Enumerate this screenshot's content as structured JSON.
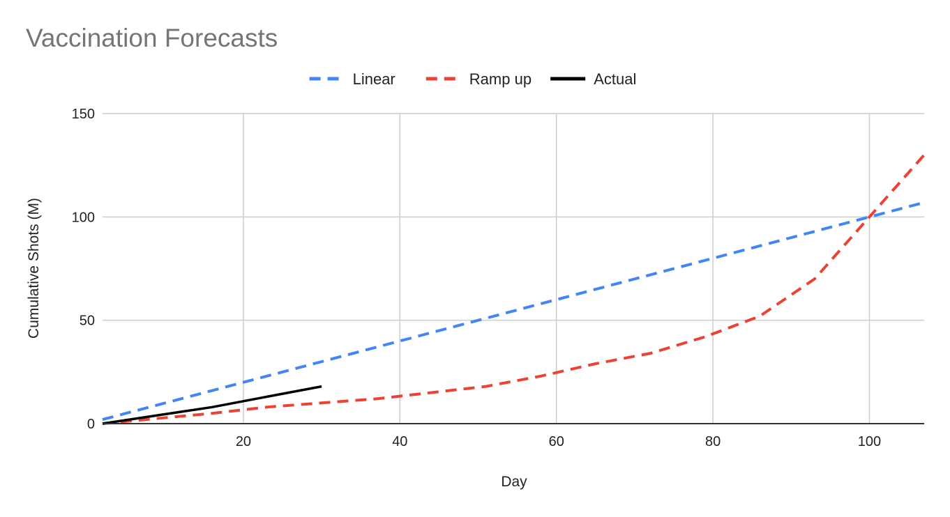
{
  "chart_data": {
    "type": "line",
    "title": "Vaccination Forecasts",
    "xlabel": "Day",
    "ylabel": "Cumulative Shots (M)",
    "xlim": [
      2,
      107
    ],
    "ylim": [
      0,
      150
    ],
    "xticks": [
      20,
      40,
      60,
      80,
      100
    ],
    "yticks": [
      0,
      50,
      100,
      150
    ],
    "grid": true,
    "legend": "top-center",
    "series": [
      {
        "name": "Linear",
        "color": "#4285F4",
        "dashed": true,
        "x": [
          2,
          107
        ],
        "y": [
          2,
          107
        ]
      },
      {
        "name": "Ramp up",
        "color": "#EA4335",
        "dashed": true,
        "x": [
          2,
          16,
          23,
          30,
          37,
          44,
          51,
          58,
          65,
          72,
          79,
          86,
          93,
          100,
          107
        ],
        "y": [
          0,
          5,
          8,
          10,
          12,
          15,
          18,
          23,
          29,
          34,
          42,
          52,
          70,
          100,
          130
        ]
      },
      {
        "name": "Actual",
        "color": "#000000",
        "dashed": false,
        "x": [
          2,
          9,
          16,
          23,
          30
        ],
        "y": [
          0,
          4,
          8,
          13,
          18
        ]
      }
    ]
  }
}
